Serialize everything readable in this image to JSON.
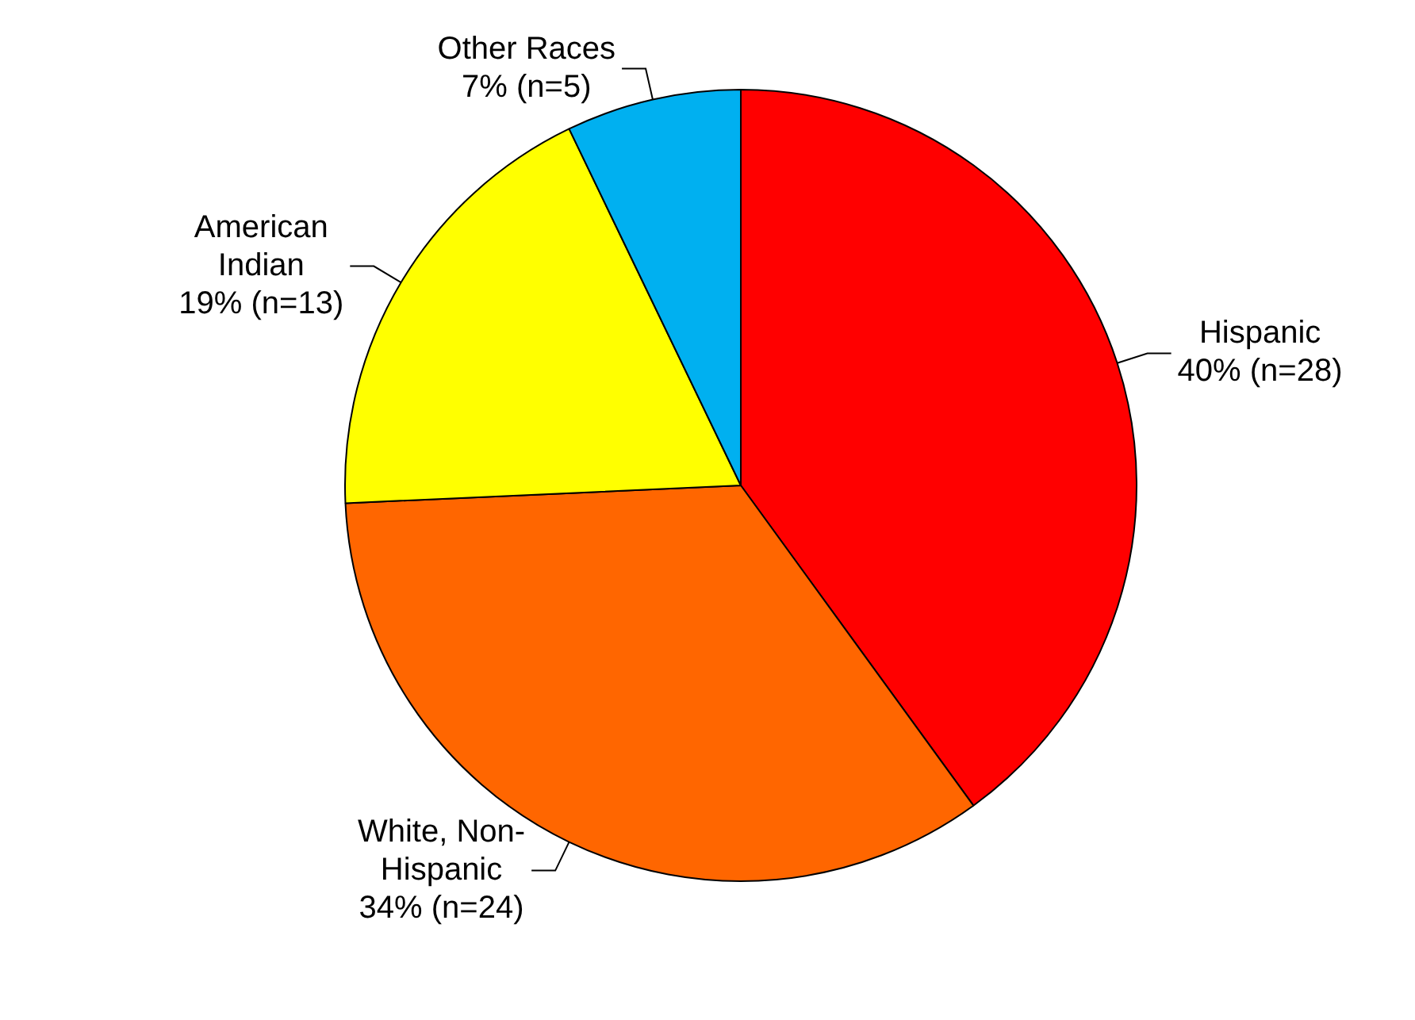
{
  "chart_data": {
    "type": "pie",
    "categories": [
      "Hispanic",
      "White, Non-Hispanic",
      "American Indian",
      "Other Races"
    ],
    "values": [
      28,
      24,
      13,
      5
    ],
    "value_labels": [
      "40% (n=28)",
      "34% (n=24)",
      "19% (n=13)",
      "7% (n=5)"
    ],
    "colors": [
      "#ff0000",
      "#ff6600",
      "#ffff00",
      "#00b0f0"
    ],
    "legend": false
  }
}
